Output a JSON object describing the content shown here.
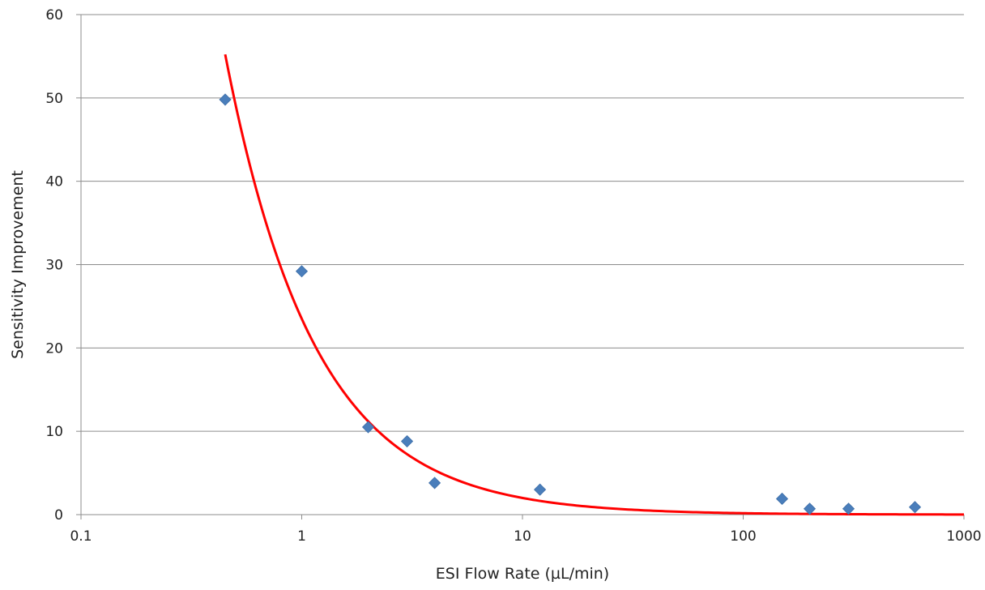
{
  "chart_data": {
    "type": "scatter",
    "title": "",
    "xlabel": "ESI Flow Rate (µL/min)",
    "ylabel": "Sensitivity Improvement",
    "xscale": "log",
    "xlim": [
      0.1,
      1000
    ],
    "ylim": [
      0,
      60
    ],
    "x_ticks": [
      0.1,
      1,
      10,
      100,
      1000
    ],
    "x_tick_labels": [
      "0.1",
      "1",
      "10",
      "100",
      "1000"
    ],
    "y_ticks": [
      0,
      10,
      20,
      30,
      40,
      50,
      60
    ],
    "y_tick_labels": [
      "0",
      "10",
      "20",
      "30",
      "40",
      "50",
      "60"
    ],
    "grid": "horizontal",
    "legend": "none",
    "series": [
      {
        "type": "scatter",
        "marker": "diamond",
        "color": "#4a7ebb",
        "points": [
          {
            "x": 0.45,
            "y": 49.8
          },
          {
            "x": 1.0,
            "y": 29.2
          },
          {
            "x": 2.0,
            "y": 10.5
          },
          {
            "x": 3.0,
            "y": 8.8
          },
          {
            "x": 4.0,
            "y": 3.8
          },
          {
            "x": 12.0,
            "y": 3.0
          },
          {
            "x": 150.0,
            "y": 1.9
          },
          {
            "x": 200.0,
            "y": 0.7
          },
          {
            "x": 300.0,
            "y": 0.7
          },
          {
            "x": 600.0,
            "y": 0.9
          }
        ]
      },
      {
        "type": "line",
        "color": "#ff0000",
        "fit": "power",
        "coefficient": 23.5,
        "exponent": -1.07,
        "x_range": [
          0.45,
          1000
        ]
      }
    ]
  }
}
